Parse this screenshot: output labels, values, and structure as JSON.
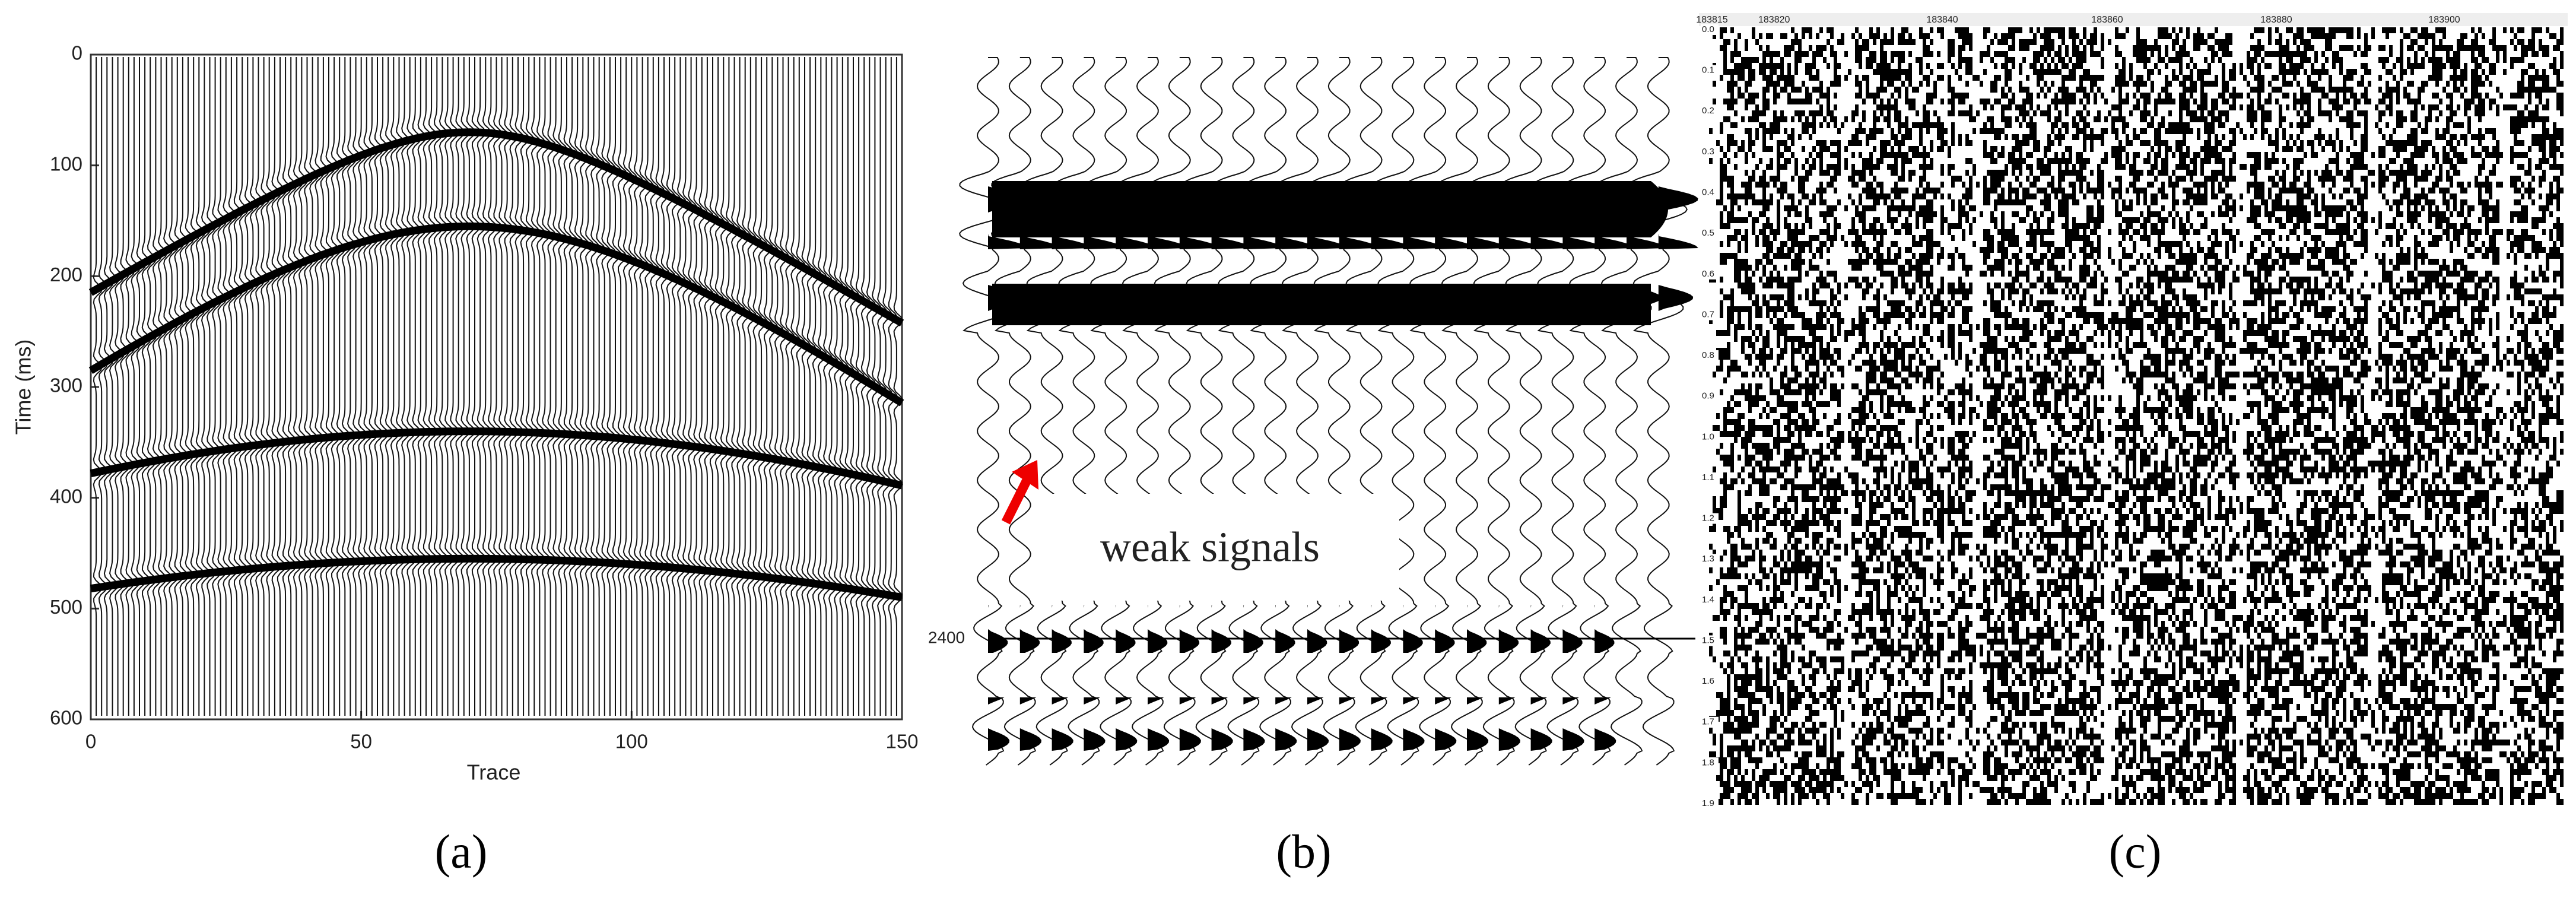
{
  "panel_a": {
    "y_label": "Time (ms)",
    "x_label": "Trace",
    "yticks": [
      "0",
      "100",
      "200",
      "300",
      "400",
      "500",
      "600"
    ],
    "xticks": [
      "0",
      "50",
      "100",
      "150"
    ],
    "caption": "(a)"
  },
  "panel_b": {
    "annotation": "weak signals",
    "marker_label": "2400",
    "caption": "(b)"
  },
  "panel_c": {
    "top_ticks": [
      "183815",
      "183820",
      "183840",
      "183860",
      "183880",
      "183900"
    ],
    "left_ticks": [
      "0.0",
      "0.1",
      "0.2",
      "0.3",
      "0.4",
      "0.5",
      "0.6",
      "0.7",
      "0.8",
      "0.9",
      "1.0",
      "1.1",
      "1.2",
      "1.3",
      "1.4",
      "1.5",
      "1.6",
      "1.7",
      "1.8",
      "1.9"
    ],
    "caption": "(c)"
  }
}
